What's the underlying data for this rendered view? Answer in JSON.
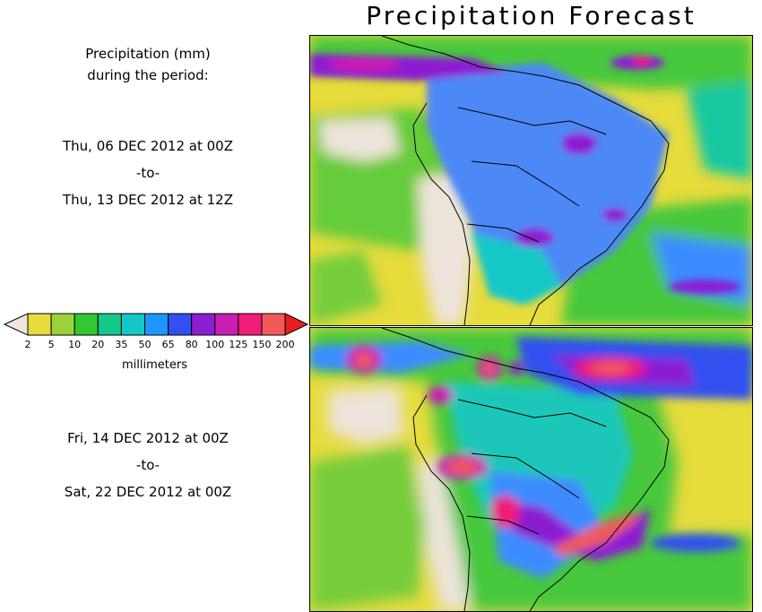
{
  "title": "Precipitation Forecast",
  "side": {
    "heading_line1": "Precipitation (mm)",
    "heading_line2": "during the period:",
    "period1": {
      "from": "Thu, 06 DEC 2012 at 00Z",
      "sep": "-to-",
      "to": "Thu, 13 DEC 2012 at 12Z"
    },
    "period2": {
      "from": "Fri, 14 DEC 2012 at 00Z",
      "sep": "-to-",
      "to": "Sat, 22 DEC 2012 at 00Z"
    }
  },
  "legend": {
    "unit_label": "millimeters",
    "ticks": [
      "2",
      "5",
      "10",
      "20",
      "35",
      "50",
      "65",
      "80",
      "100",
      "125",
      "150",
      "200"
    ],
    "colors": [
      "#f0e6dc",
      "#e6dc3c",
      "#9bd23c",
      "#32c832",
      "#14c88c",
      "#14c8c8",
      "#1e96ff",
      "#3250f0",
      "#8c1ed2",
      "#c81eb4",
      "#f01e78",
      "#f05a5a",
      "#e61e1e"
    ]
  },
  "colors": {
    "dry": "#ece3da",
    "light": "#e6dc3c",
    "green": "#46c83c",
    "teal": "#14c8a0",
    "blue": "#3c8cff",
    "violet": "#8c1ed2",
    "pink": "#f01e78"
  }
}
